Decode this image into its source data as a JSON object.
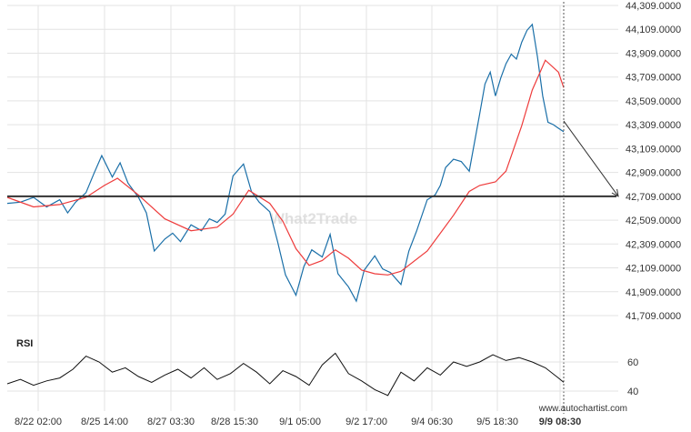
{
  "chart_data": [
    {
      "type": "line",
      "title": "",
      "watermark": "What2Trade",
      "y_ticks": [
        "44,309.0000",
        "44,109.0000",
        "43,909.0000",
        "43,709.0000",
        "43,509.0000",
        "43,309.0000",
        "43,109.0000",
        "42,909.0000",
        "42,709.0000",
        "42,509.0000",
        "42,309.0000",
        "42,109.0000",
        "41,909.0000",
        "41,709.0000"
      ],
      "ylim": [
        41709,
        44309
      ],
      "x_ticks": [
        "8/22 02:00",
        "8/25 14:00",
        "8/27 03:30",
        "8/28 15:30",
        "9/1 05:00",
        "9/2 17:00",
        "9/4 06:30",
        "9/5 18:30",
        "9/9 08:30"
      ],
      "series": [
        {
          "color": "#1a6fa8",
          "x": [
            0,
            0.5,
            1,
            1.5,
            2,
            2.3,
            2.6,
            3,
            3.3,
            3.6,
            4,
            4.3,
            4.6,
            5,
            5.3,
            5.6,
            6,
            6.3,
            6.6,
            7,
            7.4,
            7.7,
            8,
            8.3,
            8.6,
            9,
            9.3,
            9.6,
            10,
            10.3,
            10.6,
            11,
            11.3,
            11.6,
            12,
            12.3,
            12.6,
            13,
            13.3,
            13.6,
            14,
            14.3,
            14.6,
            15,
            15.3,
            15.6,
            16,
            16.3,
            16.5,
            16.7,
            17,
            17.3,
            17.6,
            18,
            18.2,
            18.4,
            18.6,
            18.8,
            19,
            19.2,
            19.4,
            19.6,
            19.8,
            20,
            20.2,
            20.4,
            20.6,
            20.8,
            21,
            21.2
          ],
          "values": [
            42650,
            42660,
            42700,
            42620,
            42680,
            42570,
            42660,
            42740,
            42900,
            43050,
            42870,
            42990,
            42820,
            42700,
            42570,
            42250,
            42350,
            42400,
            42330,
            42470,
            42420,
            42520,
            42490,
            42560,
            42880,
            42980,
            42750,
            42660,
            42580,
            42330,
            42050,
            41880,
            42120,
            42260,
            42200,
            42390,
            42060,
            41950,
            41830,
            42090,
            42210,
            42100,
            42070,
            41970,
            42250,
            42420,
            42680,
            42720,
            42800,
            42950,
            43020,
            43000,
            42920,
            43400,
            43650,
            43750,
            43550,
            43700,
            43820,
            43900,
            43860,
            44000,
            44100,
            44150,
            43880,
            43550,
            43330,
            43310,
            43280,
            43250
          ]
        },
        {
          "color": "#ee3b3b",
          "x": [
            0,
            1,
            2,
            3,
            3.7,
            4.2,
            5,
            6,
            7,
            8,
            8.6,
            9.2,
            10,
            10.5,
            11,
            11.5,
            12,
            12.5,
            13,
            13.5,
            14,
            14.5,
            15,
            16,
            17,
            17.6,
            18,
            18.6,
            19,
            19.6,
            20,
            20.5,
            21,
            21.2
          ],
          "values": [
            42700,
            42620,
            42640,
            42700,
            42800,
            42860,
            42720,
            42520,
            42420,
            42450,
            42560,
            42760,
            42650,
            42500,
            42270,
            42130,
            42170,
            42260,
            42190,
            42090,
            42060,
            42050,
            42080,
            42250,
            42550,
            42750,
            42800,
            42830,
            42920,
            43300,
            43600,
            43850,
            43750,
            43620
          ]
        }
      ],
      "horizontal_line": 42709,
      "forecast_arrow": {
        "from": 43340,
        "to": 42709
      },
      "brand": "www.autochartist.com"
    },
    {
      "type": "line",
      "title": "RSI",
      "y_ticks": [
        "60",
        "40"
      ],
      "ylim": [
        35,
        75
      ],
      "series": [
        {
          "color": "#111111",
          "x": [
            0,
            0.5,
            1,
            1.5,
            2,
            2.5,
            3,
            3.5,
            4,
            4.5,
            5,
            5.5,
            6,
            6.5,
            7,
            7.5,
            8,
            8.5,
            9,
            9.5,
            10,
            10.5,
            11,
            11.5,
            12,
            12.5,
            13,
            13.5,
            14,
            14.5,
            15,
            15.5,
            16,
            16.5,
            17,
            17.5,
            18,
            18.5,
            19,
            19.5,
            20,
            20.5,
            21,
            21.2
          ],
          "values": [
            45,
            48,
            44,
            47,
            49,
            55,
            64,
            60,
            53,
            56,
            50,
            46,
            51,
            55,
            49,
            56,
            48,
            52,
            59,
            53,
            45,
            54,
            50,
            44,
            58,
            66,
            52,
            47,
            41,
            37,
            53,
            47,
            56,
            51,
            60,
            57,
            60,
            65,
            61,
            63,
            60,
            56,
            49,
            46
          ]
        }
      ]
    }
  ]
}
